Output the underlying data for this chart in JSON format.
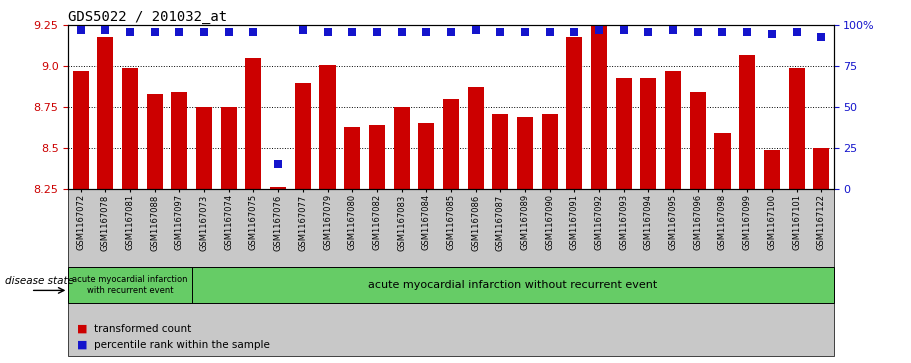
{
  "title": "GDS5022 / 201032_at",
  "samples": [
    "GSM1167072",
    "GSM1167078",
    "GSM1167081",
    "GSM1167088",
    "GSM1167097",
    "GSM1167073",
    "GSM1167074",
    "GSM1167075",
    "GSM1167076",
    "GSM1167077",
    "GSM1167079",
    "GSM1167080",
    "GSM1167082",
    "GSM1167083",
    "GSM1167084",
    "GSM1167085",
    "GSM1167086",
    "GSM1167087",
    "GSM1167089",
    "GSM1167090",
    "GSM1167091",
    "GSM1167092",
    "GSM1167093",
    "GSM1167094",
    "GSM1167095",
    "GSM1167096",
    "GSM1167098",
    "GSM1167099",
    "GSM1167100",
    "GSM1167101",
    "GSM1167122"
  ],
  "bar_values": [
    8.97,
    9.18,
    8.99,
    8.83,
    8.84,
    8.75,
    8.75,
    9.05,
    8.26,
    8.9,
    9.01,
    8.63,
    8.64,
    8.75,
    8.65,
    8.8,
    8.87,
    8.71,
    8.69,
    8.71,
    9.18,
    9.25,
    8.93,
    8.93,
    8.97,
    8.84,
    8.59,
    9.07,
    8.49,
    8.99,
    8.5
  ],
  "percentile_values": [
    97,
    97,
    96,
    96,
    96,
    96,
    96,
    96,
    15,
    97,
    96,
    96,
    96,
    96,
    96,
    96,
    97,
    96,
    96,
    96,
    96,
    97,
    97,
    96,
    97,
    96,
    96,
    96,
    95,
    96,
    93
  ],
  "ylim_left": [
    8.25,
    9.25
  ],
  "ylim_right": [
    0,
    100
  ],
  "yticks_left": [
    8.25,
    8.5,
    8.75,
    9.0,
    9.25
  ],
  "yticks_right": [
    0,
    25,
    50,
    75,
    100
  ],
  "bar_color": "#cc0000",
  "dot_color": "#1414cc",
  "group1_count": 5,
  "group1_label": "acute myocardial infarction\nwith recurrent event",
  "group2_label": "acute myocardial infarction without recurrent event",
  "disease_state_label": "disease state",
  "legend_bar_label": "transformed count",
  "legend_dot_label": "percentile rank within the sample",
  "title_fontsize": 10,
  "tick_fontsize": 8,
  "xtick_fontsize": 6,
  "dot_size": 30,
  "green_color": "#66cc66",
  "grey_color": "#c8c8c8"
}
